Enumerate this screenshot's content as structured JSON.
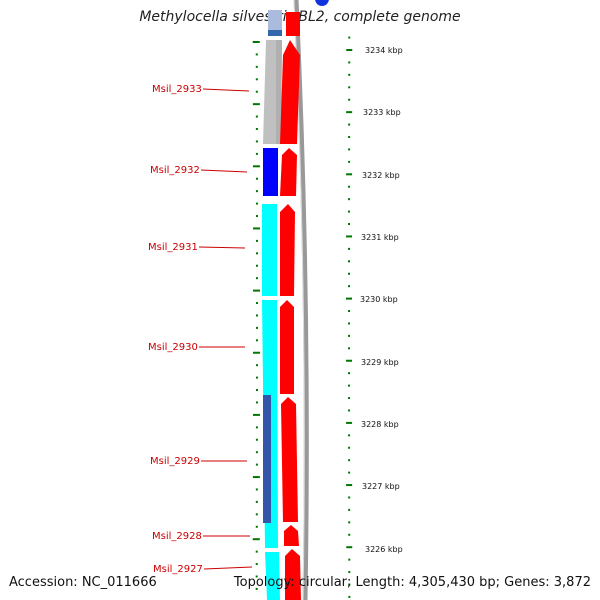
{
  "title": "Methylocella silvestris BL2, complete genome",
  "footer": {
    "accession": "Accession: NC_011666",
    "topology": "Topology: circular; Length: 4,305,430 bp; Genes: 3,872"
  },
  "colors": {
    "forward_cds": "#ff0000",
    "reverse_cds": "#00ffff",
    "gene_feature": "#c0c0c0",
    "highlight": "#0000ff",
    "label": "#cc0000",
    "tick": "#007700",
    "backbone": "#999999"
  },
  "scale": {
    "unit": "kbp",
    "labels": [
      "3234 kbp",
      "3233 kbp",
      "3232 kbp",
      "3231 kbp",
      "3230 kbp",
      "3229 kbp",
      "3228 kbp",
      "3227 kbp",
      "3226 kbp"
    ]
  },
  "genes": [
    {
      "name": "Msil_2933"
    },
    {
      "name": "Msil_2932"
    },
    {
      "name": "Msil_2931"
    },
    {
      "name": "Msil_2930"
    },
    {
      "name": "Msil_2929"
    },
    {
      "name": "Msil_2928"
    },
    {
      "name": "Msil_2927"
    }
  ]
}
